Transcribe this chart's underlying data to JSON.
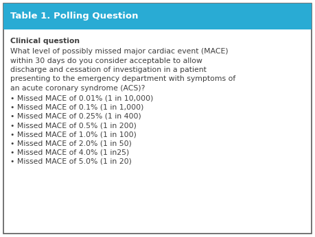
{
  "title": "Table 1. Polling Question",
  "header_bg": "#29ABD4",
  "header_text_color": "#FFFFFF",
  "body_bg": "#FFFFFF",
  "border_color": "#5B5B5B",
  "text_color": "#3D3D3D",
  "bold_label": "Clinical question",
  "question_lines": [
    "What level of possibly missed major cardiac event (MACE)",
    "within 30 days do you consider acceptable to allow",
    "discharge and cessation of investigation in a patient",
    "presenting to the emergency department with symptoms of",
    "an acute coronary syndrome (ACS)?"
  ],
  "bullets": [
    "Missed MACE of 0.01% (1 in 10,000)",
    "Missed MACE of 0.1% (1 in 1,000)",
    "Missed MACE of 0.25% (1 in 400)",
    "Missed MACE of 0.5% (1 in 200)",
    "Missed MACE of 1.0% (1 in 100)",
    "Missed MACE of 2.0% (1 in 50)",
    "Missed MACE of 4.0% (1 in25)",
    "Missed MACE of 5.0% (1 in 20)"
  ],
  "figsize": [
    4.59,
    3.46
  ],
  "dpi": 100,
  "header_fontsize": 9.5,
  "body_fontsize": 7.8,
  "bold_fontsize": 7.8
}
